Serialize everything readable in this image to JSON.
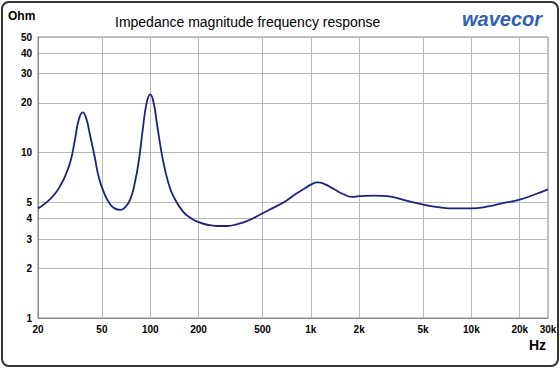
{
  "chart_data": {
    "type": "line",
    "title": "Impedance magnitude frequency response",
    "x_label": "Hz",
    "y_label": "Ohm",
    "annotations": [
      "wavecor"
    ],
    "log": true,
    "grid": true,
    "color": "#1a237e",
    "x": [
      20,
      22,
      25,
      28,
      30,
      32,
      34,
      36,
      38,
      40,
      42,
      45,
      48,
      52,
      56,
      60,
      65,
      70,
      75,
      80,
      85,
      90,
      95,
      100,
      105,
      110,
      120,
      130,
      140,
      160,
      180,
      200,
      230,
      260,
      300,
      350,
      400,
      500,
      600,
      700,
      800,
      900,
      1000,
      1100,
      1200,
      1400,
      1600,
      1800,
      2000,
      2500,
      3000,
      4000,
      5000,
      6000,
      8000,
      10000,
      13000,
      15000,
      20000,
      25000,
      30000
    ],
    "values": [
      4.6,
      4.9,
      5.5,
      6.5,
      7.5,
      9,
      12,
      16,
      17.5,
      16,
      13,
      9.5,
      7,
      5.6,
      4.9,
      4.6,
      4.5,
      4.7,
      5.2,
      6.5,
      9,
      14,
      20,
      22.5,
      20,
      15,
      9,
      6.5,
      5.4,
      4.4,
      4.0,
      3.8,
      3.65,
      3.6,
      3.6,
      3.7,
      3.85,
      4.3,
      4.7,
      5.1,
      5.6,
      6.0,
      6.4,
      6.6,
      6.5,
      6.0,
      5.6,
      5.4,
      5.45,
      5.5,
      5.45,
      5.1,
      4.85,
      4.7,
      4.6,
      4.6,
      4.75,
      4.9,
      5.2,
      5.6,
      6.0
    ],
    "xlim": [
      20,
      30000
    ],
    "xticks": [
      20,
      50,
      100,
      200,
      500,
      {
        "value": 1000,
        "label": "1k"
      },
      {
        "value": 2000,
        "label": "2k"
      },
      {
        "value": 5000,
        "label": "5k"
      },
      {
        "value": 10000,
        "label": "10k"
      },
      {
        "value": 20000,
        "label": "20k"
      },
      {
        "value": 30000,
        "label": "30k"
      }
    ],
    "ylim": [
      1,
      50
    ],
    "yticks": [
      1,
      2,
      3,
      4,
      5,
      10,
      20,
      30,
      40,
      50
    ]
  }
}
